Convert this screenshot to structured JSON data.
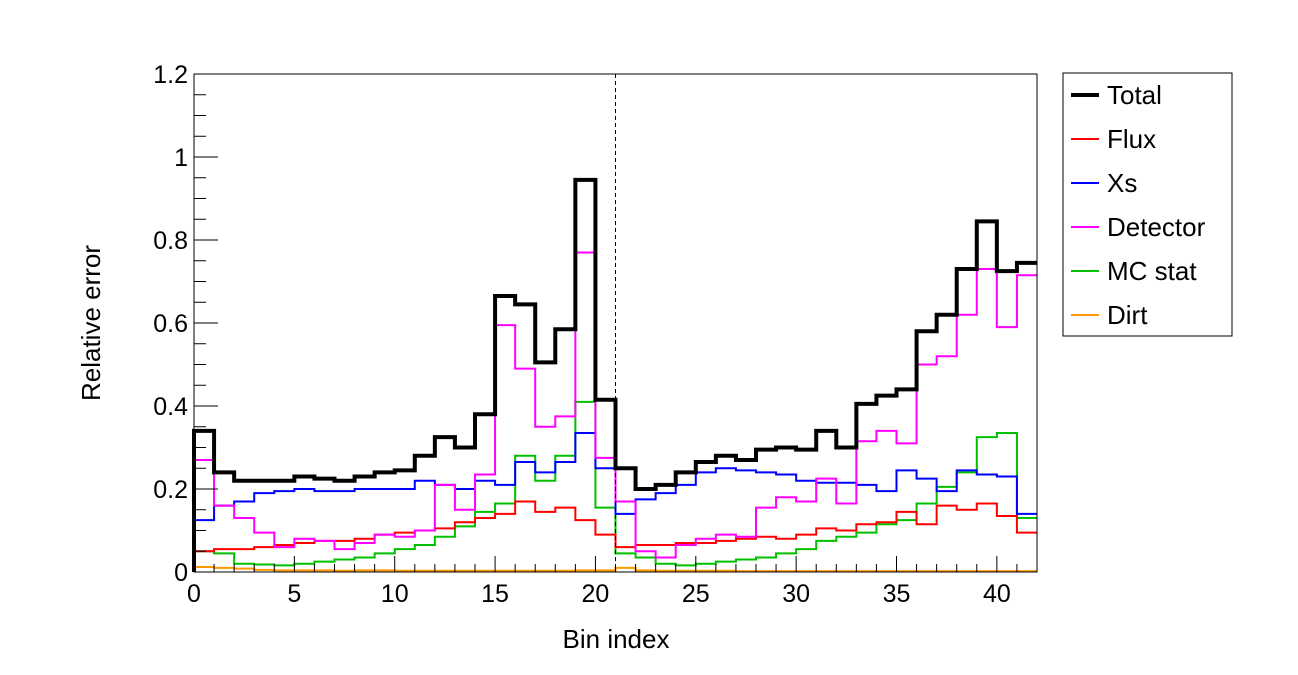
{
  "chart_data": {
    "type": "line",
    "style": "step-histogram",
    "xlabel": "Bin index",
    "ylabel": "Relative error",
    "xlim": [
      0,
      42
    ],
    "ylim": [
      0,
      1.2
    ],
    "x_ticks": [
      0,
      5,
      10,
      15,
      20,
      25,
      30,
      35,
      40
    ],
    "y_ticks": [
      0,
      0.2,
      0.4,
      0.6,
      0.8,
      1,
      1.2
    ],
    "x_tick_labels": [
      "0",
      "5",
      "10",
      "15",
      "20",
      "25",
      "30",
      "35",
      "40"
    ],
    "y_tick_labels": [
      "0",
      "0.2",
      "0.4",
      "0.6",
      "0.8",
      "1",
      "1.2"
    ],
    "grid": false,
    "legend_position": "outside-right",
    "vertical_reference_line": {
      "x": 21,
      "style": "dashed"
    },
    "bin_edges_start": 0,
    "bin_width": 1,
    "series": [
      {
        "name": "Total",
        "color": "#000000",
        "width": 4,
        "values": [
          0.34,
          0.24,
          0.22,
          0.22,
          0.22,
          0.23,
          0.225,
          0.22,
          0.23,
          0.24,
          0.245,
          0.28,
          0.325,
          0.3,
          0.38,
          0.665,
          0.645,
          0.505,
          0.585,
          0.945,
          0.415,
          0.25,
          0.2,
          0.21,
          0.24,
          0.265,
          0.28,
          0.27,
          0.295,
          0.3,
          0.295,
          0.34,
          0.3,
          0.405,
          0.425,
          0.44,
          0.58,
          0.62,
          0.73,
          0.845,
          0.725,
          0.745
        ]
      },
      {
        "name": "Flux",
        "color": "#ff0000",
        "width": 2,
        "values": [
          0.05,
          0.055,
          0.055,
          0.06,
          0.065,
          0.07,
          0.075,
          0.075,
          0.08,
          0.09,
          0.095,
          0.1,
          0.105,
          0.12,
          0.13,
          0.14,
          0.17,
          0.145,
          0.155,
          0.125,
          0.09,
          0.06,
          0.065,
          0.065,
          0.07,
          0.07,
          0.075,
          0.08,
          0.085,
          0.08,
          0.09,
          0.105,
          0.1,
          0.115,
          0.12,
          0.145,
          0.115,
          0.16,
          0.15,
          0.165,
          0.135,
          0.095
        ]
      },
      {
        "name": "Xs",
        "color": "#0000ff",
        "width": 2,
        "values": [
          0.125,
          0.16,
          0.17,
          0.19,
          0.195,
          0.2,
          0.195,
          0.195,
          0.2,
          0.2,
          0.2,
          0.22,
          0.21,
          0.2,
          0.22,
          0.21,
          0.265,
          0.24,
          0.265,
          0.335,
          0.25,
          0.14,
          0.175,
          0.19,
          0.21,
          0.24,
          0.25,
          0.245,
          0.24,
          0.235,
          0.22,
          0.215,
          0.215,
          0.21,
          0.195,
          0.245,
          0.225,
          0.195,
          0.245,
          0.235,
          0.23,
          0.14
        ]
      },
      {
        "name": "Detector",
        "color": "#ff00ff",
        "width": 2,
        "values": [
          0.27,
          0.16,
          0.13,
          0.095,
          0.06,
          0.08,
          0.075,
          0.055,
          0.07,
          0.09,
          0.085,
          0.1,
          0.21,
          0.15,
          0.235,
          0.595,
          0.49,
          0.35,
          0.375,
          0.77,
          0.275,
          0.17,
          0.05,
          0.035,
          0.065,
          0.08,
          0.09,
          0.085,
          0.155,
          0.18,
          0.17,
          0.225,
          0.165,
          0.315,
          0.34,
          0.31,
          0.5,
          0.52,
          0.62,
          0.73,
          0.59,
          0.715
        ]
      },
      {
        "name": "MC stat",
        "color": "#00c000",
        "width": 2,
        "values": [
          0.05,
          0.045,
          0.02,
          0.018,
          0.016,
          0.02,
          0.025,
          0.03,
          0.035,
          0.045,
          0.055,
          0.065,
          0.085,
          0.11,
          0.145,
          0.165,
          0.28,
          0.22,
          0.28,
          0.41,
          0.155,
          0.045,
          0.035,
          0.02,
          0.016,
          0.02,
          0.025,
          0.03,
          0.035,
          0.045,
          0.055,
          0.075,
          0.085,
          0.095,
          0.115,
          0.125,
          0.165,
          0.205,
          0.24,
          0.325,
          0.335,
          0.13
        ]
      },
      {
        "name": "Dirt",
        "color": "#ff9900",
        "width": 2,
        "values": [
          0.012,
          0.01,
          0.008,
          0.005,
          0.004,
          0.004,
          0.004,
          0.003,
          0.004,
          0.004,
          0.003,
          0.003,
          0.003,
          0.003,
          0.003,
          0.003,
          0.003,
          0.003,
          0.003,
          0.004,
          0.004,
          0.01,
          0.004,
          0.003,
          0.003,
          0.003,
          0.003,
          0.002,
          0.002,
          0.002,
          0.002,
          0.002,
          0.002,
          0.002,
          0.002,
          0.002,
          0.002,
          0.002,
          0.002,
          0.002,
          0.002,
          0.002
        ]
      }
    ]
  }
}
